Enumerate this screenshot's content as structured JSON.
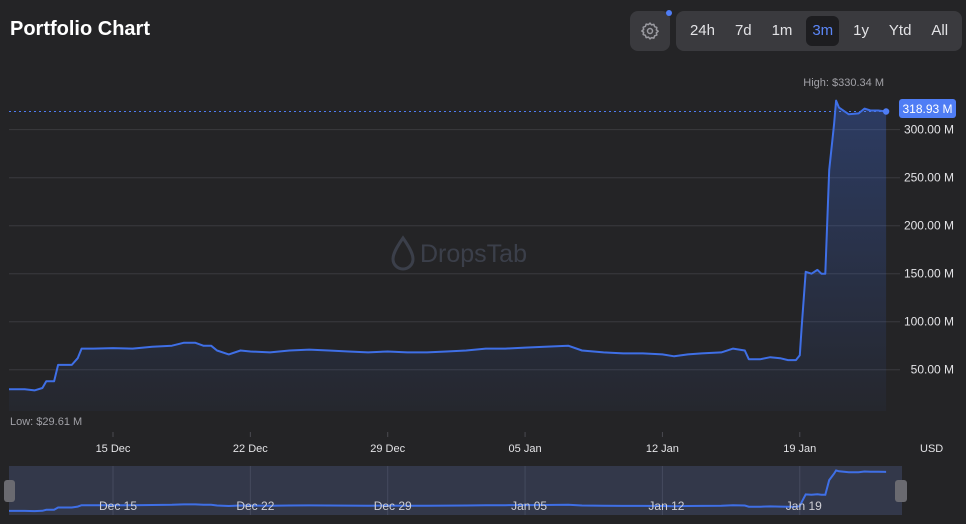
{
  "title": "Portfolio Chart",
  "colors": {
    "accent": "#4f7df5",
    "line": "#3f6fe6",
    "background": "#242426",
    "grid": "#3a3a3e"
  },
  "icons": {
    "settings": "gear-icon",
    "watermark": "dropstab-drop-icon"
  },
  "ranges": [
    {
      "label": "24h",
      "active": false
    },
    {
      "label": "7d",
      "active": false
    },
    {
      "label": "1m",
      "active": false
    },
    {
      "label": "3m",
      "active": true
    },
    {
      "label": "1y",
      "active": false
    },
    {
      "label": "Ytd",
      "active": false
    },
    {
      "label": "All",
      "active": false
    }
  ],
  "watermark": "DropsTab",
  "navigator": {
    "x_ticks": [
      "Dec 15",
      "Dec 22",
      "Dec 29",
      "Jan 05",
      "Jan 12",
      "Jan 19"
    ]
  },
  "chart_data": {
    "type": "area",
    "title": "Portfolio Chart",
    "currency_label": "USD",
    "y_ticks": [
      {
        "value": 50,
        "label": "50.00 M"
      },
      {
        "value": 100,
        "label": "100.00 M"
      },
      {
        "value": 150,
        "label": "150.00 M"
      },
      {
        "value": 200,
        "label": "200.00 M"
      },
      {
        "value": 250,
        "label": "250.00 M"
      },
      {
        "value": 300,
        "label": "300.00 M"
      }
    ],
    "x_ticks": [
      {
        "day": 4,
        "label": "15 Dec"
      },
      {
        "day": 11,
        "label": "22 Dec"
      },
      {
        "day": 18,
        "label": "29 Dec"
      },
      {
        "day": 25,
        "label": "05 Jan"
      },
      {
        "day": 32,
        "label": "12 Jan"
      },
      {
        "day": 39,
        "label": "19 Jan"
      }
    ],
    "ylim": [
      7,
      333
    ],
    "xlim": [
      -1.3,
      43.7
    ],
    "grid": true,
    "high_label": "High: $330.34 M",
    "low_label": "Low: $29.61 M",
    "current_label": "318.93 M",
    "current_value": 318.93,
    "series": [
      {
        "points": [
          [
            -1.3,
            29.6
          ],
          [
            -0.5,
            29.6
          ],
          [
            0.0,
            28.5
          ],
          [
            0.4,
            31
          ],
          [
            0.6,
            38
          ],
          [
            1.0,
            38
          ],
          [
            1.2,
            55
          ],
          [
            1.9,
            55
          ],
          [
            2.2,
            62
          ],
          [
            2.4,
            72
          ],
          [
            3.0,
            72
          ],
          [
            4.0,
            72.5
          ],
          [
            5.0,
            72
          ],
          [
            6.0,
            74
          ],
          [
            7.0,
            75
          ],
          [
            7.6,
            78
          ],
          [
            8.2,
            78
          ],
          [
            8.6,
            75
          ],
          [
            9.0,
            75
          ],
          [
            9.3,
            70
          ],
          [
            9.9,
            66
          ],
          [
            10.5,
            70
          ],
          [
            11.0,
            69
          ],
          [
            12.0,
            68
          ],
          [
            13.0,
            70
          ],
          [
            14.0,
            71
          ],
          [
            15.0,
            70
          ],
          [
            16.0,
            69
          ],
          [
            17.0,
            68
          ],
          [
            18.0,
            69
          ],
          [
            19.0,
            68
          ],
          [
            20.0,
            68
          ],
          [
            21.0,
            69
          ],
          [
            22.0,
            70
          ],
          [
            23.0,
            72
          ],
          [
            24.0,
            72
          ],
          [
            25.0,
            73
          ],
          [
            26.0,
            74
          ],
          [
            27.2,
            75
          ],
          [
            27.9,
            70
          ],
          [
            29.0,
            68
          ],
          [
            30.0,
            67
          ],
          [
            31.0,
            67
          ],
          [
            32.0,
            66
          ],
          [
            32.6,
            64
          ],
          [
            33.3,
            66
          ],
          [
            34.0,
            67
          ],
          [
            35.0,
            68
          ],
          [
            35.6,
            72
          ],
          [
            36.2,
            70
          ],
          [
            36.4,
            61
          ],
          [
            37.0,
            61
          ],
          [
            37.5,
            63
          ],
          [
            38.0,
            62
          ],
          [
            38.4,
            60
          ],
          [
            38.8,
            60
          ],
          [
            39.0,
            65
          ],
          [
            39.1,
            95
          ],
          [
            39.3,
            152
          ],
          [
            39.6,
            150
          ],
          [
            39.9,
            154
          ],
          [
            40.1,
            150
          ],
          [
            40.3,
            150
          ],
          [
            40.5,
            258
          ],
          [
            40.75,
            306
          ],
          [
            40.85,
            330.3
          ],
          [
            41.0,
            323
          ],
          [
            41.5,
            316
          ],
          [
            42.0,
            317
          ],
          [
            42.3,
            322
          ],
          [
            42.6,
            320
          ],
          [
            43.0,
            320
          ],
          [
            43.4,
            318.9
          ]
        ]
      }
    ]
  }
}
